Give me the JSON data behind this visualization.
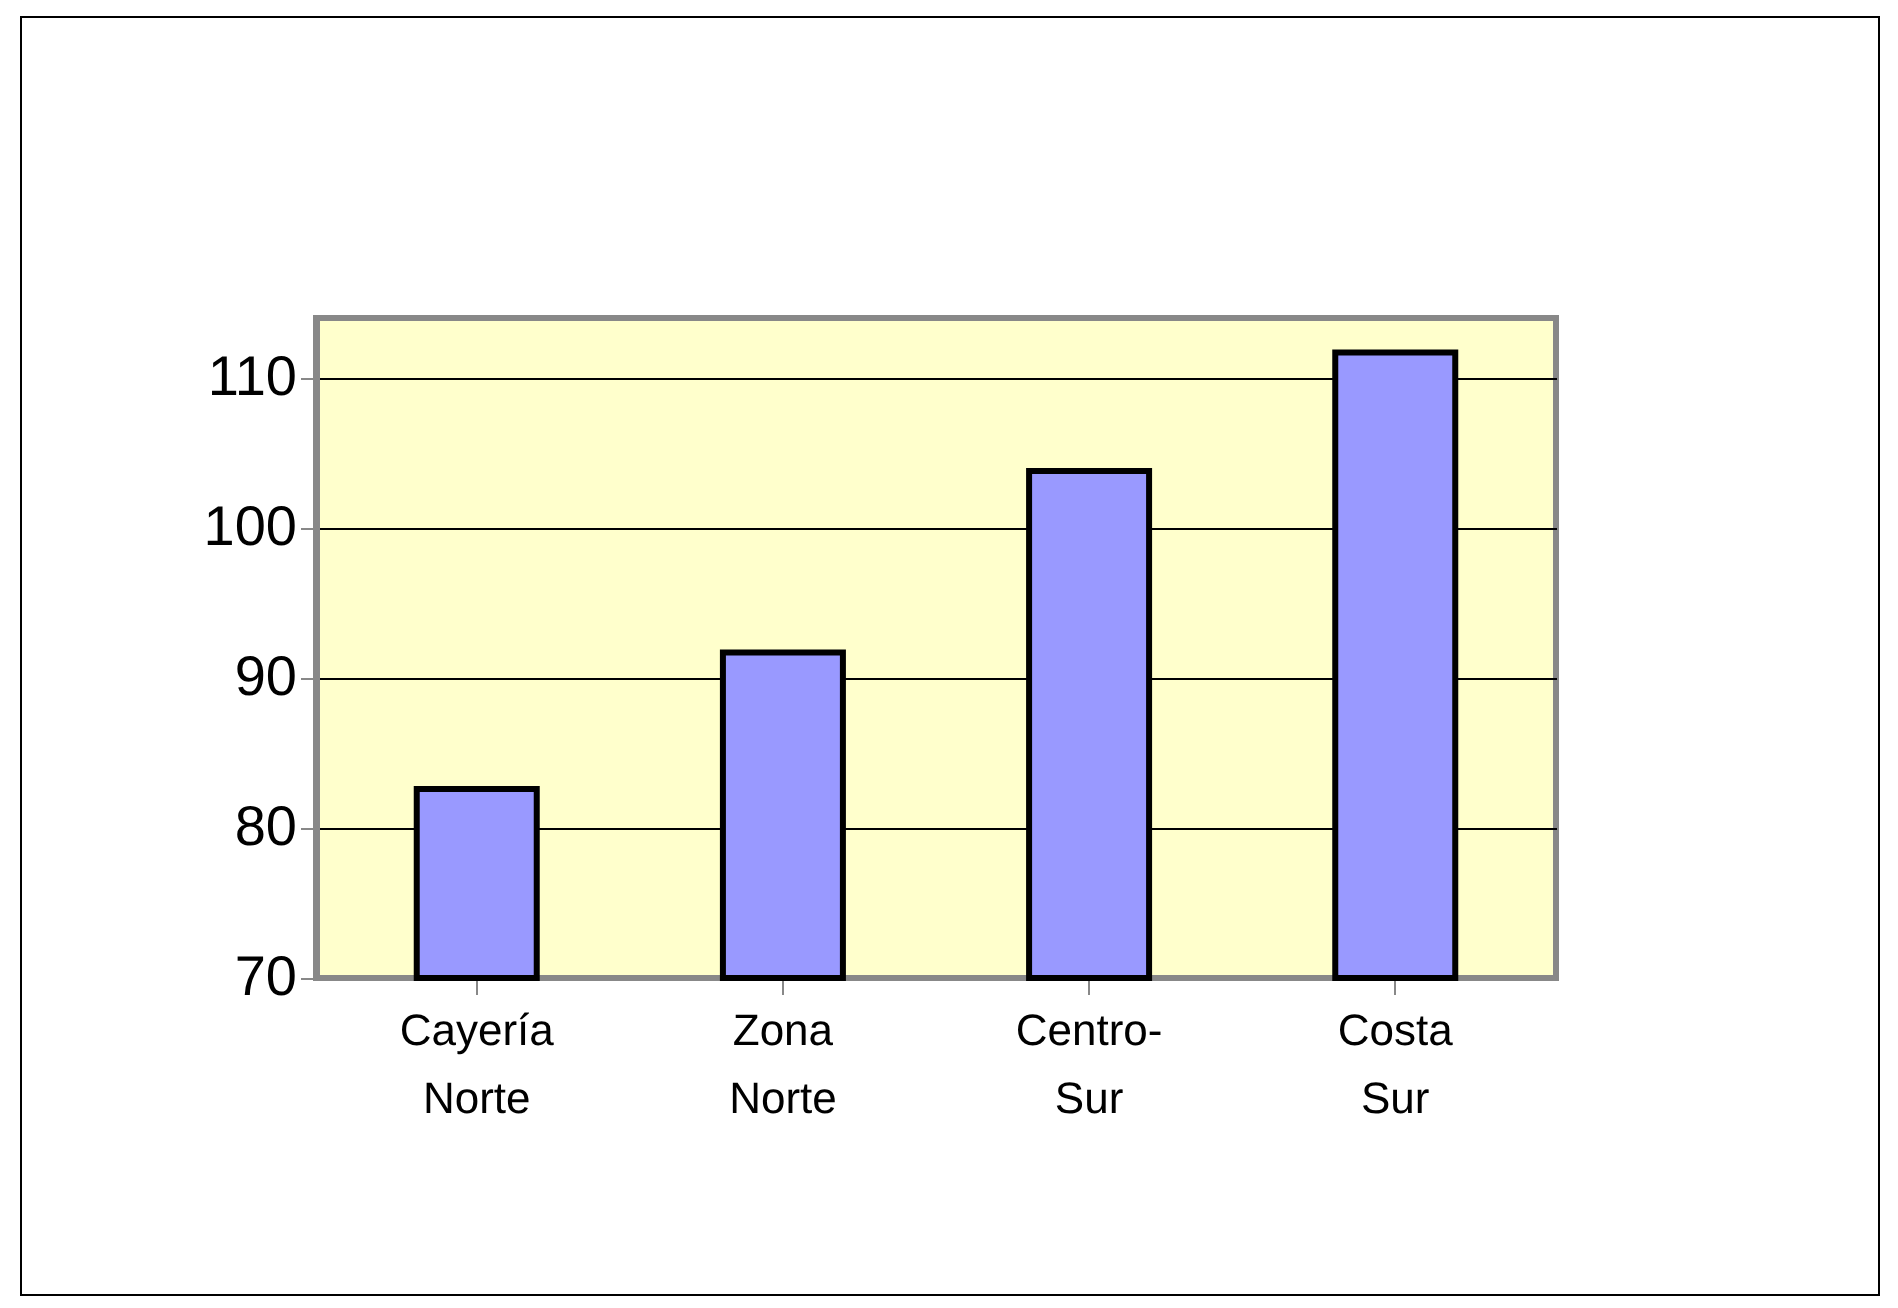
{
  "chart_data": {
    "type": "bar",
    "categories": [
      "Cayería Norte",
      "Zona Norte",
      "Centro-Sur",
      "Costa Sur"
    ],
    "values": [
      82.6,
      91.7,
      103.8,
      111.7
    ],
    "color": "#9999ff",
    "ylim": [
      70,
      114
    ],
    "yticks": [
      70,
      80,
      90,
      100,
      110
    ],
    "grid": "y"
  }
}
